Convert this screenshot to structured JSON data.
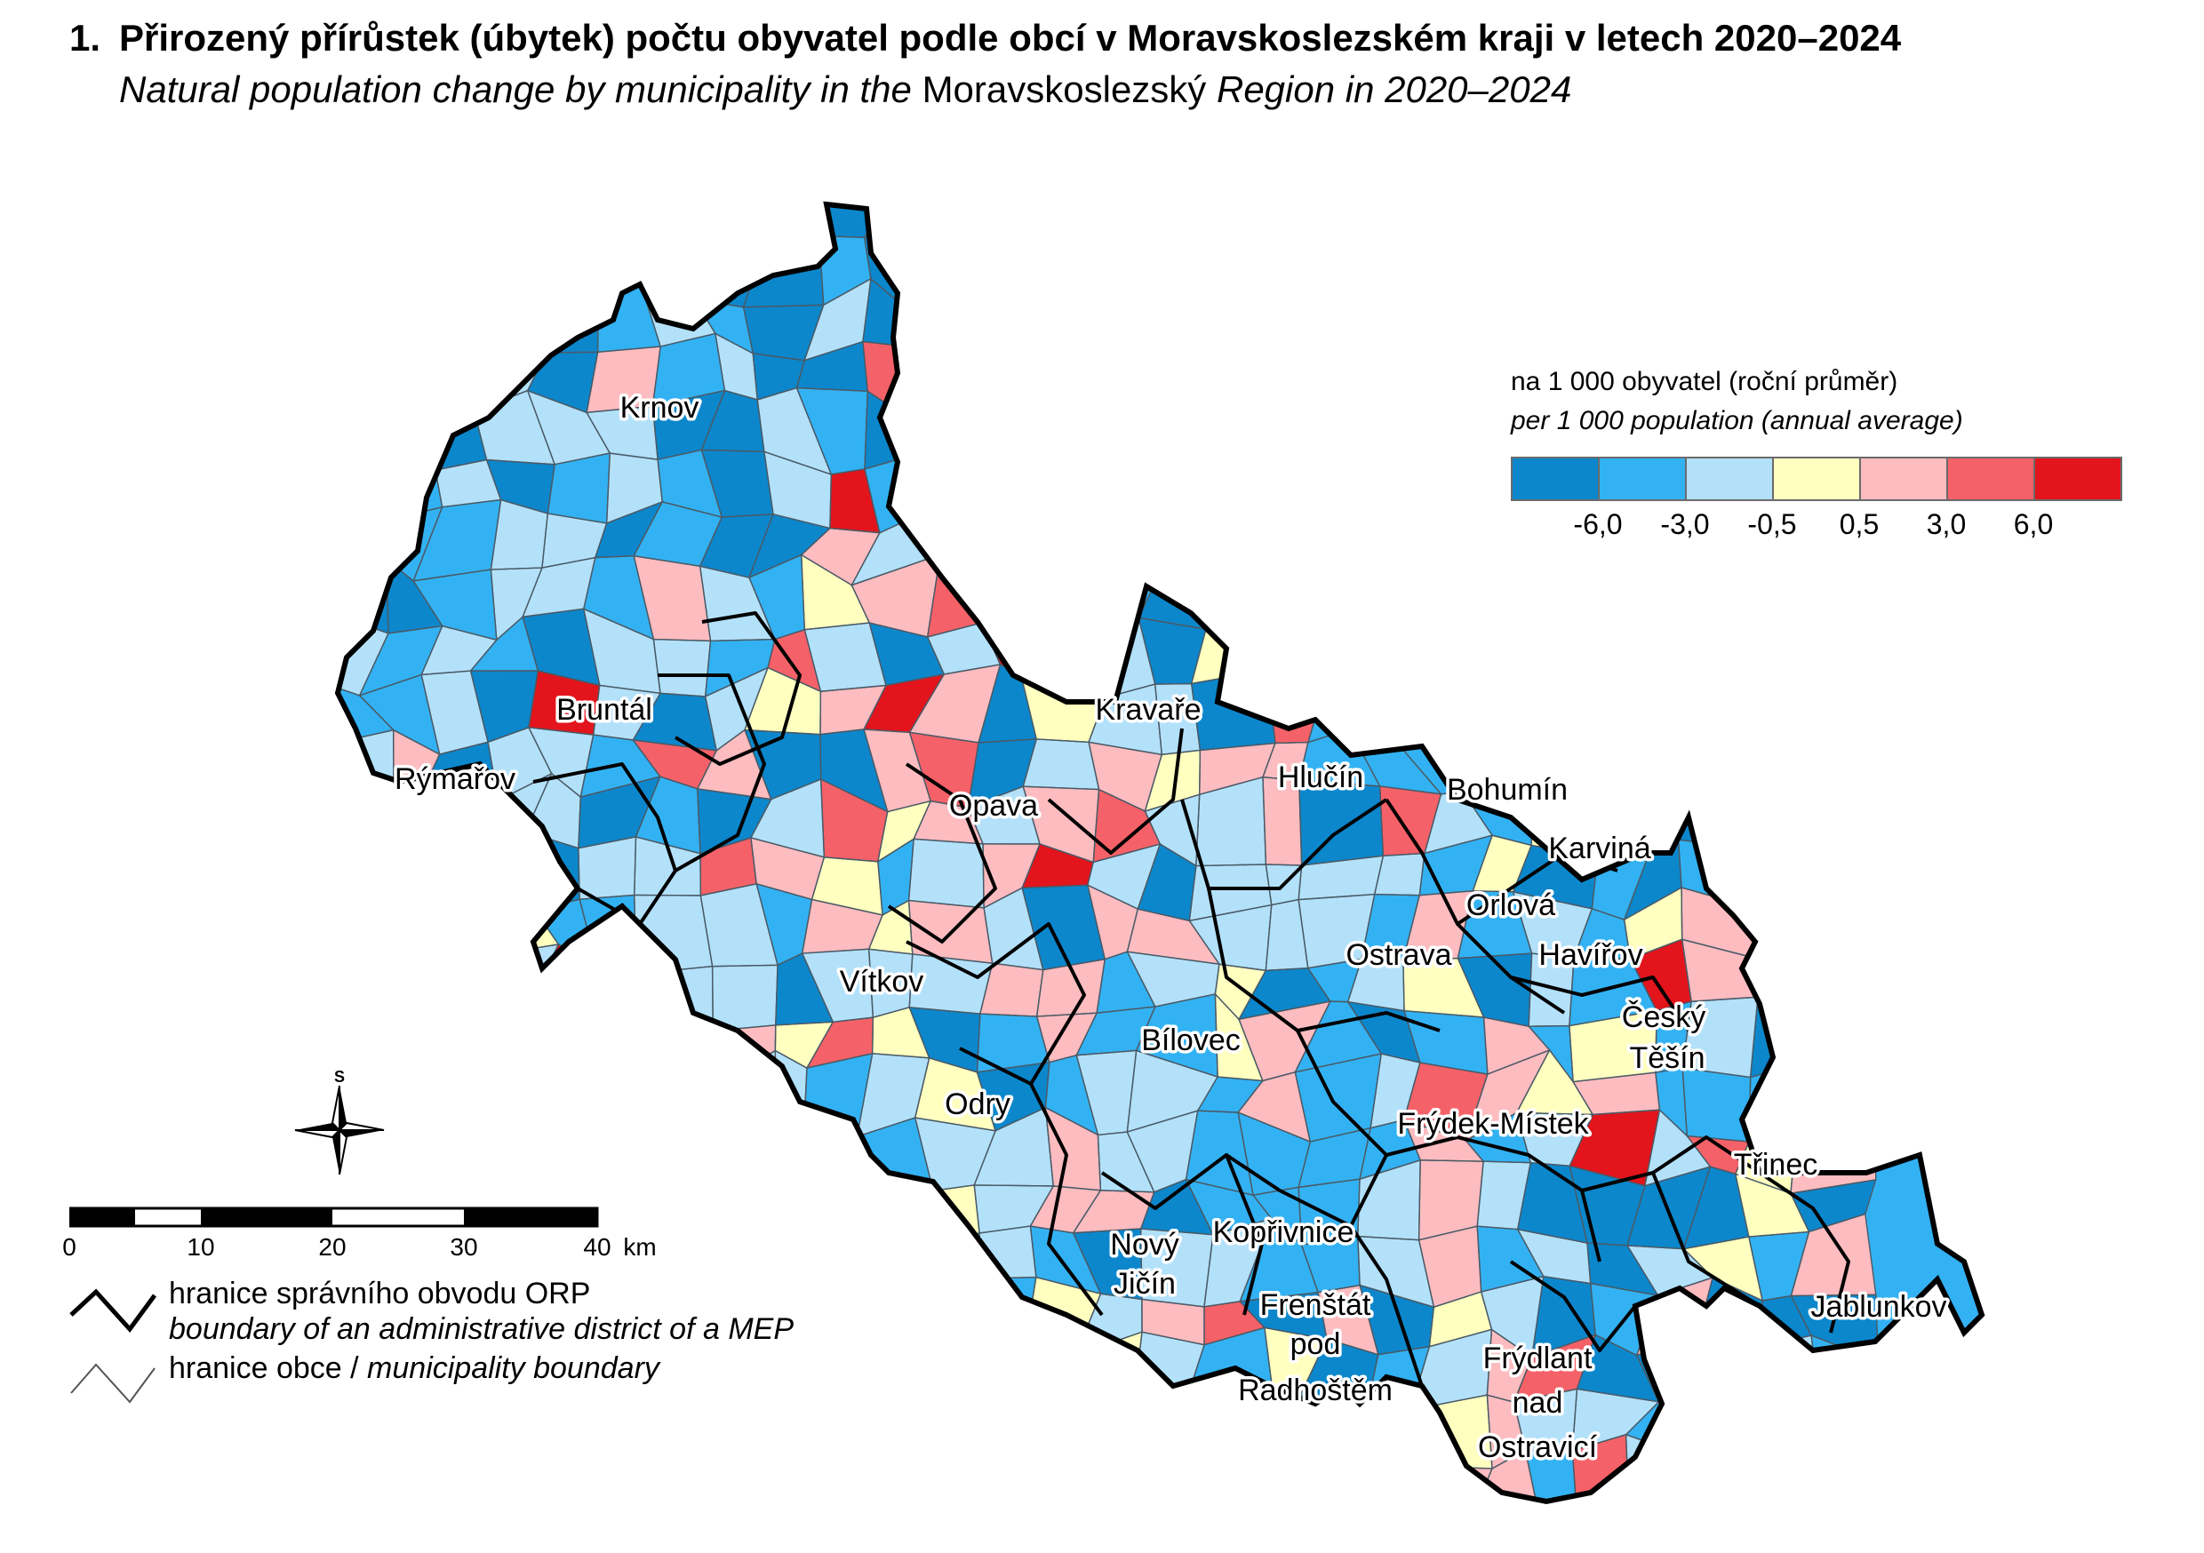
{
  "title": {
    "number": "1.",
    "cz": "Přirozený přírůstek (úbytek) počtu obyvatel podle obcí v Moravskoslezském kraji v letech 2020–2024",
    "en_italic_before": "Natural population change by municipality in the",
    "en_region": "Moravskoslezský",
    "en_italic_after": "Region in 2020–2024"
  },
  "legend": {
    "unit_cz": "na 1 000 obyvatel (roční průměr)",
    "unit_en": "per 1 000 population (annual average)",
    "class_colors": [
      "#0c87cc",
      "#33b2f3",
      "#b3e1fa",
      "#ffffc0",
      "#fdbcc0",
      "#f56168",
      "#e3141c"
    ],
    "breaks": [
      "-6,0",
      "-3,0",
      "-0,5",
      "0,5",
      "3,0",
      "6,0"
    ]
  },
  "cities": [
    {
      "name": "Krnov"
    },
    {
      "name": "Bruntál"
    },
    {
      "name": "Rýmařov"
    },
    {
      "name": "Kravaře"
    },
    {
      "name": "Opava"
    },
    {
      "name": "Hlučín"
    },
    {
      "name": "Bohumín"
    },
    {
      "name": "Karviná"
    },
    {
      "name": "Orlová"
    },
    {
      "name": "Havířov"
    },
    {
      "name": "Ostrava"
    },
    {
      "name": "Vítkov"
    },
    {
      "name": "Bílovec"
    },
    {
      "name": "Český"
    },
    {
      "name": "Těšín"
    },
    {
      "name": "Odry"
    },
    {
      "name": "Frýdek-Místek"
    },
    {
      "name": "Třinec"
    },
    {
      "name": "Kopřivnice"
    },
    {
      "name": "Nový"
    },
    {
      "name": "Jičín"
    },
    {
      "name": "Frenštát"
    },
    {
      "name": "pod"
    },
    {
      "name": "Radhoštěm"
    },
    {
      "name": "Frýdlant"
    },
    {
      "name": "nad"
    },
    {
      "name": "Ostravicí"
    },
    {
      "name": "Jablunkov"
    }
  ],
  "north_label": "S",
  "scale": {
    "labels": [
      "0",
      "10",
      "20",
      "30",
      "40"
    ],
    "unit": "km"
  },
  "line_legend": {
    "orp_cz": "hranice správního obvodu ORP",
    "orp_en": "boundary of an administrative district of a MEP",
    "muni_cz": "hranice obce /",
    "muni_en": "municipality boundary"
  }
}
